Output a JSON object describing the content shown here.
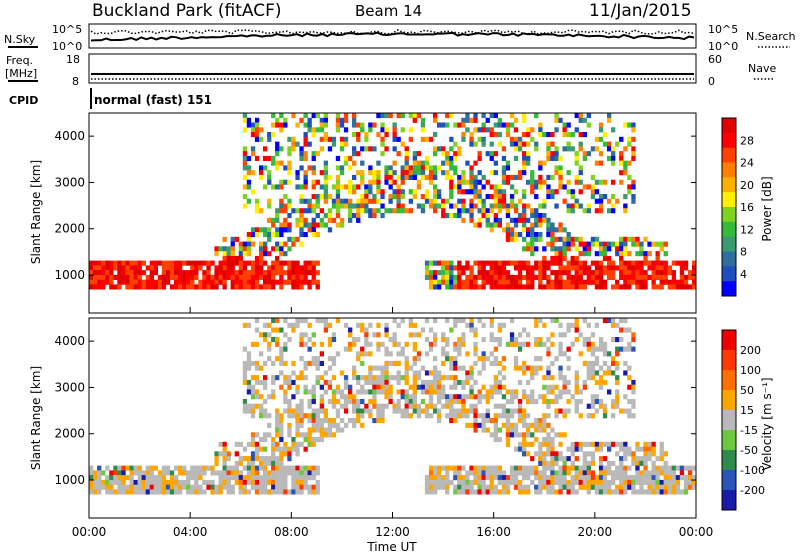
{
  "header": {
    "station": "Buckland Park (fitACF)",
    "beam": "Beam 14",
    "date": "11/Jan/2015"
  },
  "noise_panel": {
    "left_label": "N.Sky",
    "right_label": "N.Search",
    "left_ticks": [
      "10^5",
      "10^0"
    ],
    "right_ticks": [
      "10^5",
      "10^0"
    ]
  },
  "freq_panel": {
    "left_label_1": "Freq.",
    "left_label_2": "[MHz]",
    "right_label": "Nave",
    "left_ticks": [
      "18",
      "8"
    ],
    "right_ticks": [
      "60",
      "0"
    ]
  },
  "cpid_panel": {
    "label": "CPID",
    "text": "normal (fast) 151"
  },
  "x_axis": {
    "label": "Time UT",
    "ticks": [
      "00:00",
      "04:00",
      "08:00",
      "12:00",
      "16:00",
      "20:00",
      "00:00"
    ]
  },
  "chart_data": [
    {
      "type": "heatmap",
      "title": "",
      "parameter": "Power",
      "ylabel": "Slant Range [km]",
      "xlabel": "",
      "y_ticks": [
        "1000",
        "2000",
        "3000",
        "4000"
      ],
      "ylim": [
        180,
        4500
      ],
      "colorbar": {
        "label": "Power [dB]",
        "ticks": [
          "4",
          "8",
          "12",
          "16",
          "20",
          "24",
          "28"
        ],
        "range": [
          0,
          30
        ],
        "colors": [
          "#0000ff",
          "#1f4fbf",
          "#2f6fa0",
          "#3a9a70",
          "#34bb3a",
          "#7ed321",
          "#fff000",
          "#ffb000",
          "#ff8000",
          "#ff4000",
          "#ff0000",
          "#e00000"
        ]
      }
    },
    {
      "type": "heatmap",
      "title": "",
      "parameter": "Velocity",
      "ylabel": "Slant Range [km]",
      "xlabel": "Time UT",
      "y_ticks": [
        "1000",
        "2000",
        "3000",
        "4000"
      ],
      "ylim": [
        180,
        4500
      ],
      "colorbar": {
        "label": "Velocity [m s⁻¹]",
        "ticks": [
          "200",
          "100",
          "50",
          "15",
          "-15",
          "-50",
          "-100",
          "-200"
        ],
        "colors": [
          "#1a1aa8",
          "#2a54b8",
          "#2f8a50",
          "#6cc83e",
          "#b9b9b9",
          "#ffa500",
          "#ff7000",
          "#ff3a00",
          "#ee0000"
        ]
      }
    }
  ]
}
